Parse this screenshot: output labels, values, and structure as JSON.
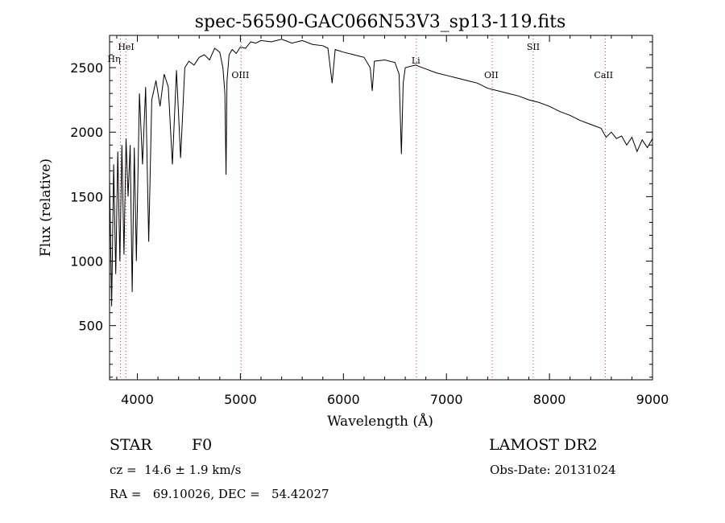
{
  "chart_data": {
    "type": "line",
    "title": "spec-56590-GAC066N53V3_sp13-119.fits",
    "xlabel": "Wavelength (Å)",
    "ylabel": "Flux (relative)",
    "xlim": [
      3730,
      9000
    ],
    "ylim": [
      80,
      2750
    ],
    "x_ticks": [
      4000,
      5000,
      6000,
      7000,
      8000,
      9000
    ],
    "y_ticks": [
      500,
      1000,
      1500,
      2000,
      2500
    ],
    "grid": false,
    "series": [
      {
        "x": [
          3730,
          3750,
          3770,
          3790,
          3810,
          3830,
          3850,
          3870,
          3890,
          3910,
          3930,
          3950,
          3970,
          3990,
          4020,
          4050,
          4080,
          4110,
          4140,
          4180,
          4220,
          4260,
          4300,
          4340,
          4380,
          4420,
          4460,
          4500,
          4550,
          4600,
          4650,
          4700,
          4750,
          4800,
          4830,
          4850,
          4861,
          4870,
          4890,
          4920,
          4960,
          5000,
          5050,
          5100,
          5150,
          5200,
          5300,
          5400,
          5500,
          5600,
          5700,
          5800,
          5850,
          5890,
          5920,
          6000,
          6100,
          6200,
          6260,
          6280,
          6300,
          6400,
          6500,
          6540,
          6563,
          6580,
          6600,
          6700,
          6800,
          6900,
          7000,
          7100,
          7200,
          7300,
          7400,
          7500,
          7600,
          7700,
          7800,
          7900,
          8000,
          8100,
          8200,
          8300,
          8400,
          8500,
          8550,
          8600,
          8650,
          8700,
          8750,
          8800,
          8850,
          8900,
          8950,
          9000
        ],
        "y": [
          1650,
          650,
          1750,
          900,
          1850,
          1000,
          1900,
          1050,
          1950,
          1500,
          1900,
          760,
          1880,
          1000,
          2300,
          1750,
          2350,
          1150,
          2250,
          2400,
          2200,
          2450,
          2350,
          1750,
          2480,
          1800,
          2500,
          2550,
          2520,
          2580,
          2600,
          2560,
          2650,
          2620,
          2500,
          2300,
          1670,
          2400,
          2600,
          2640,
          2610,
          2660,
          2650,
          2700,
          2690,
          2710,
          2700,
          2720,
          2690,
          2710,
          2680,
          2670,
          2650,
          2380,
          2640,
          2620,
          2600,
          2580,
          2500,
          2320,
          2550,
          2560,
          2540,
          2450,
          1830,
          2380,
          2500,
          2520,
          2490,
          2460,
          2440,
          2420,
          2400,
          2380,
          2340,
          2320,
          2300,
          2280,
          2250,
          2230,
          2200,
          2160,
          2130,
          2090,
          2060,
          2030,
          1960,
          2000,
          1950,
          1970,
          1900,
          1960,
          1850,
          1940,
          1880,
          1950
        ]
      }
    ],
    "lines": [
      {
        "label": "HeI",
        "x": 3889
      },
      {
        "label": "Hη",
        "x": 3835
      },
      {
        "label": "OIII",
        "x": 5007
      },
      {
        "label": "Li",
        "x": 6708
      },
      {
        "label": "OII",
        "x": 7444
      },
      {
        "label": "SII",
        "x": 7842
      },
      {
        "label": "CaII",
        "x": 8542
      }
    ]
  },
  "info": {
    "object_class": "STAR",
    "subclass": "F0",
    "survey": "LAMOST DR2",
    "redshift": "cz =  14.6 ± 1.9 km/s",
    "obs_date": "Obs-Date: 20131024",
    "coords": "RA =   69.10026, DEC =   54.42027"
  }
}
